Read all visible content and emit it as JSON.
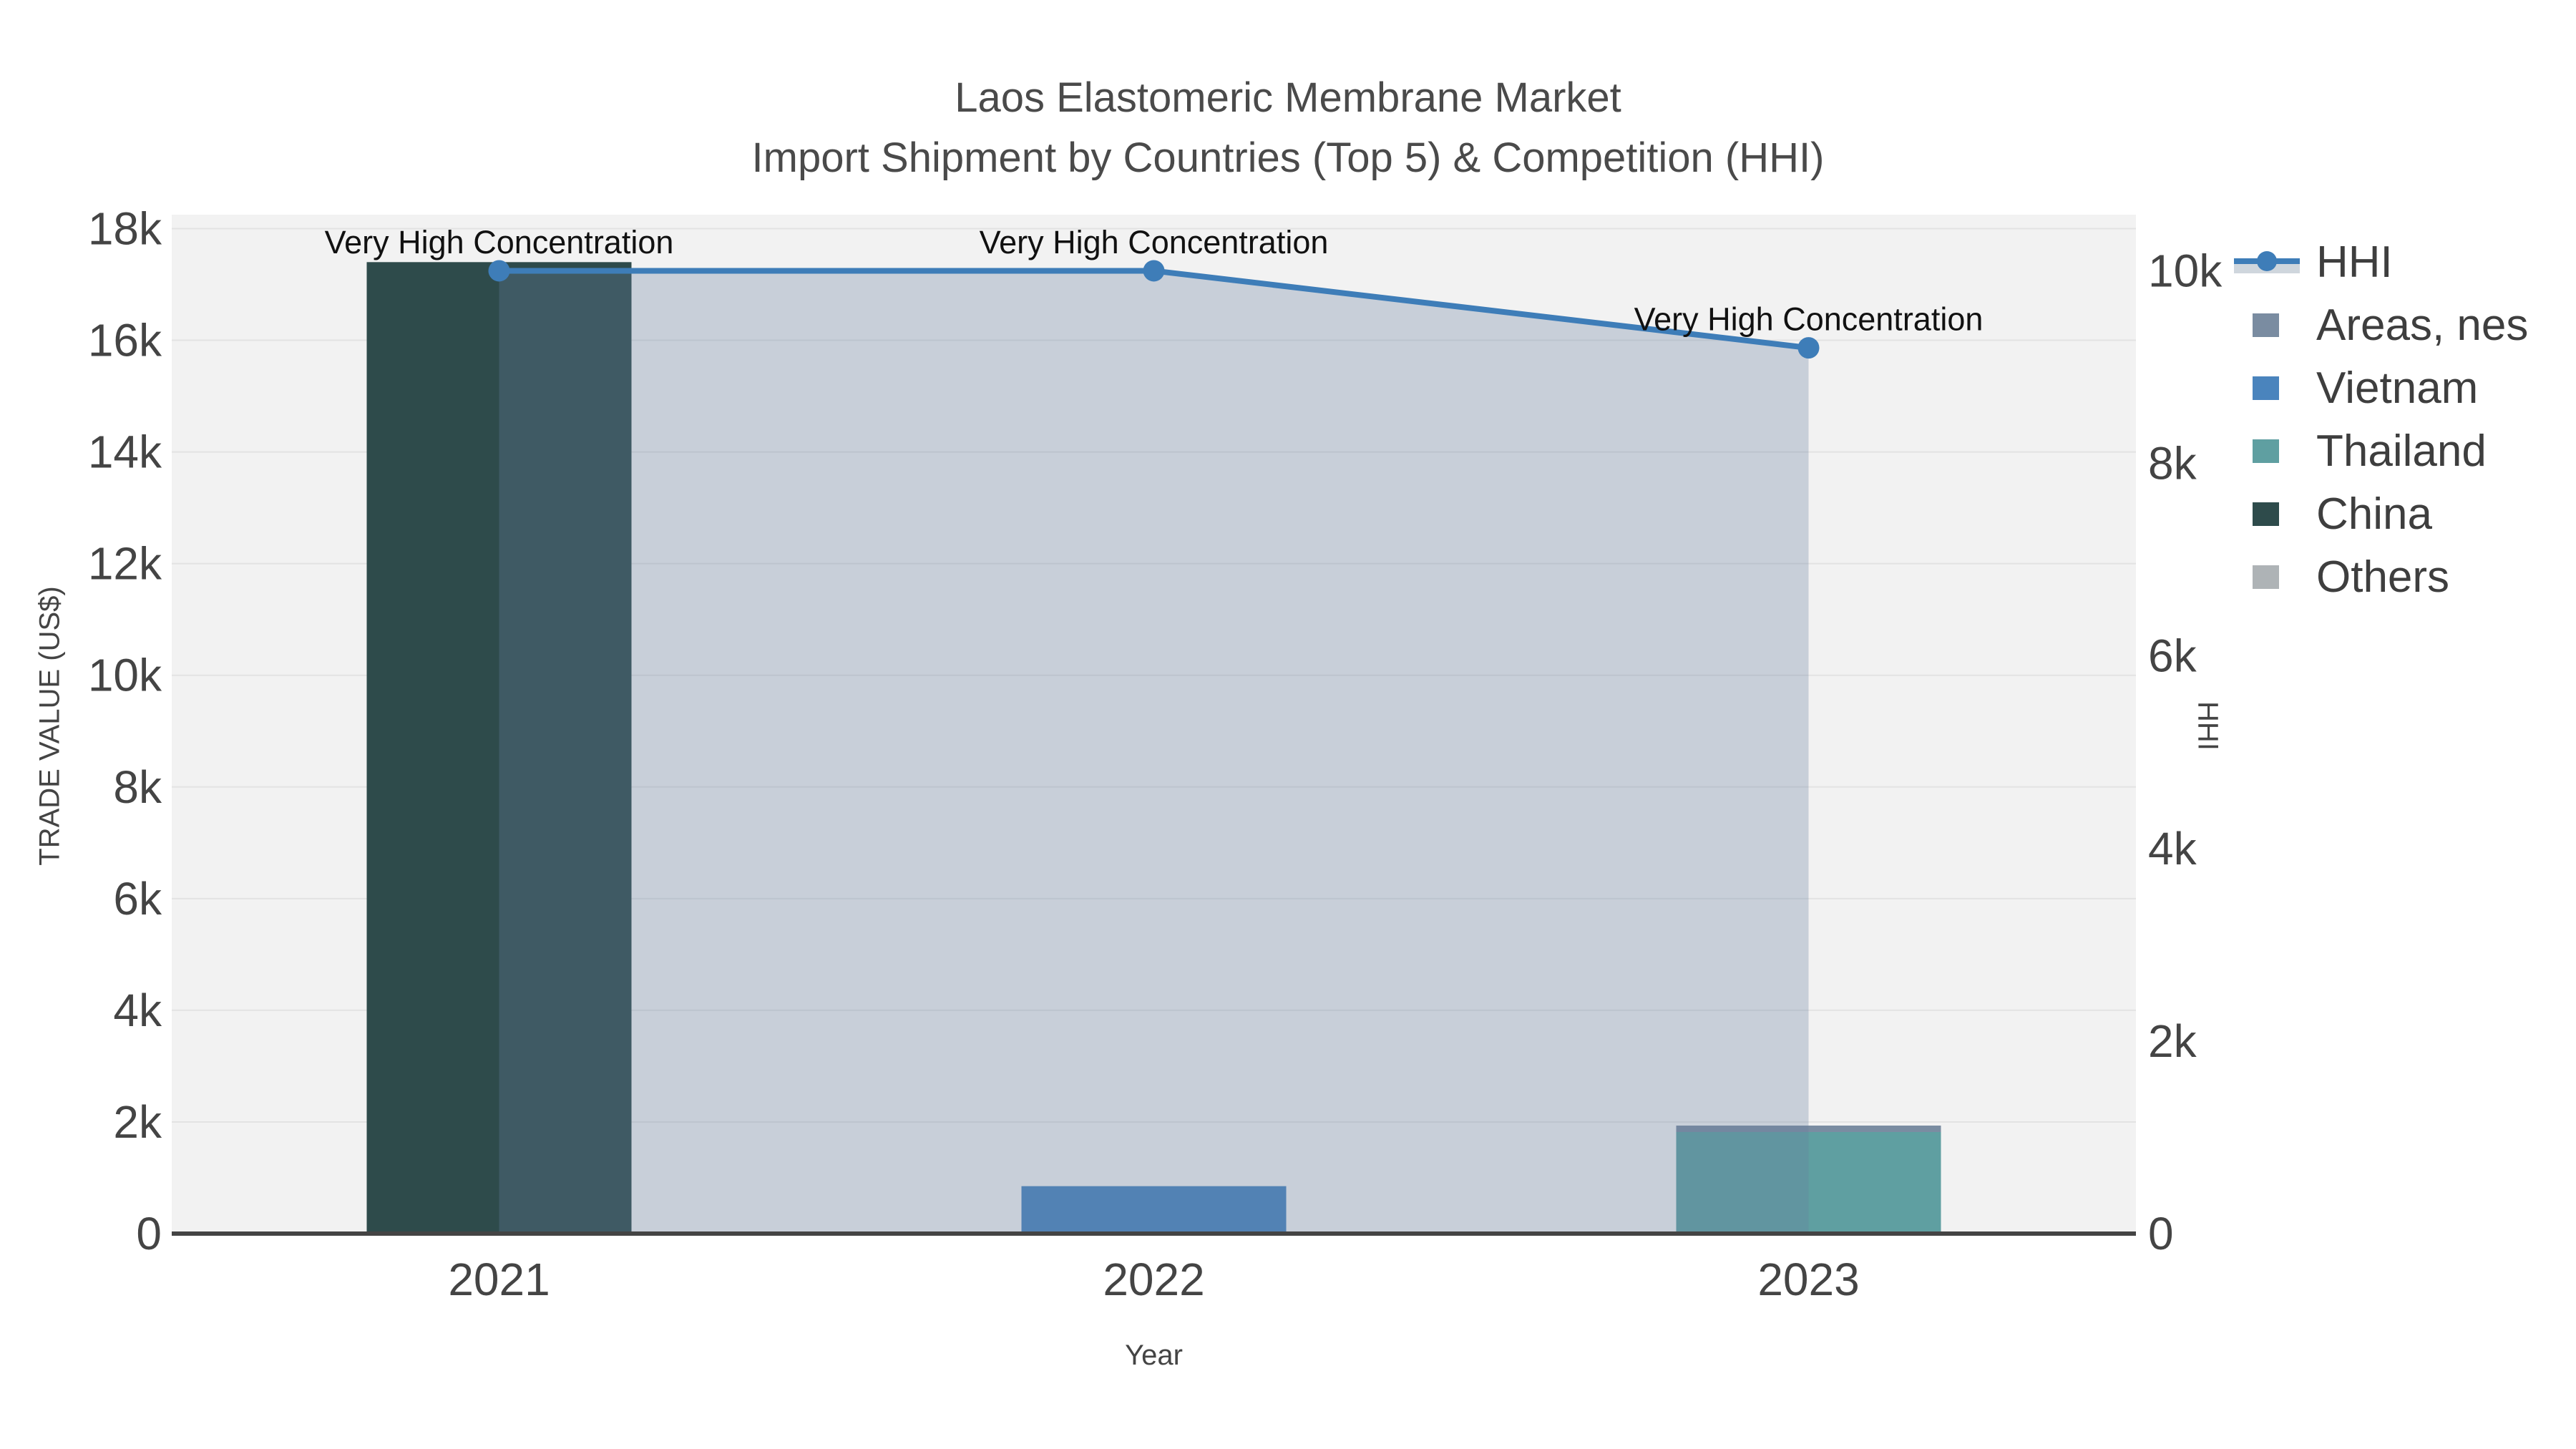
{
  "title": {
    "line1": "Laos Elastomeric Membrane Market",
    "line2": "Import Shipment by Countries (Top 5) & Competition (HHI)"
  },
  "chart_data": {
    "type": "bar+line",
    "categories": [
      "2021",
      "2022",
      "2023"
    ],
    "series": [
      {
        "name": "China",
        "color": "#2E4B4B",
        "values": [
          17400,
          0,
          0
        ]
      },
      {
        "name": "Vietnam",
        "color": "#4A84BD",
        "values": [
          0,
          850,
          0
        ]
      },
      {
        "name": "Thailand",
        "color": "#5F9FA1",
        "values": [
          0,
          0,
          1820
        ]
      },
      {
        "name": "Areas, nes",
        "color": "#7A8CA1",
        "values": [
          0,
          0,
          115
        ]
      },
      {
        "name": "Others",
        "color": "#AEB3B6",
        "values": [
          0,
          0,
          0
        ]
      }
    ],
    "line_series": {
      "name": "HHI",
      "color": "#3E7DB8",
      "fill_color": "rgba(102,125,159,0.30)",
      "values": [
        10000,
        10000,
        9200
      ]
    },
    "annotations": [
      {
        "text": "Very High Concentration",
        "category_index": 0
      },
      {
        "text": "Very High Concentration",
        "category_index": 1
      },
      {
        "text": "Very High Concentration",
        "category_index": 2
      }
    ],
    "left_axis": {
      "label": "TRADE VALUE (US$)",
      "ticks": [
        {
          "label": "0",
          "value": 0
        },
        {
          "label": "2k",
          "value": 2000
        },
        {
          "label": "4k",
          "value": 4000
        },
        {
          "label": "6k",
          "value": 6000
        },
        {
          "label": "8k",
          "value": 8000
        },
        {
          "label": "10k",
          "value": 10000
        },
        {
          "label": "12k",
          "value": 12000
        },
        {
          "label": "14k",
          "value": 14000
        },
        {
          "label": "16k",
          "value": 16000
        },
        {
          "label": "18k",
          "value": 18000
        }
      ],
      "max": 18250
    },
    "right_axis": {
      "label": "HHI",
      "ticks": [
        {
          "label": "0",
          "value": 0
        },
        {
          "label": "2k",
          "value": 2000
        },
        {
          "label": "4k",
          "value": 4000
        },
        {
          "label": "6k",
          "value": 6000
        },
        {
          "label": "8k",
          "value": 8000
        },
        {
          "label": "10k",
          "value": 10000
        }
      ],
      "max": 10583
    },
    "x_axis": {
      "label": "Year"
    },
    "grid": true,
    "legend_position": "right"
  },
  "legend": {
    "items": [
      {
        "label": "HHI",
        "type": "line",
        "color": "#3E7DB8"
      },
      {
        "label": "Areas, nes",
        "type": "square",
        "color": "#7A8CA1"
      },
      {
        "label": "Vietnam",
        "type": "square",
        "color": "#4A84BD"
      },
      {
        "label": "Thailand",
        "type": "square",
        "color": "#5F9FA1"
      },
      {
        "label": "China",
        "type": "square",
        "color": "#2E4B4B"
      },
      {
        "label": "Others",
        "type": "square",
        "color": "#AEB3B6"
      }
    ]
  },
  "style": {
    "plot_bg": "#F2F2F2",
    "grid_color": "#E3E3E3",
    "axis_line_color": "#444444",
    "tick_color": "#444444",
    "annotation_color": "#111111"
  }
}
